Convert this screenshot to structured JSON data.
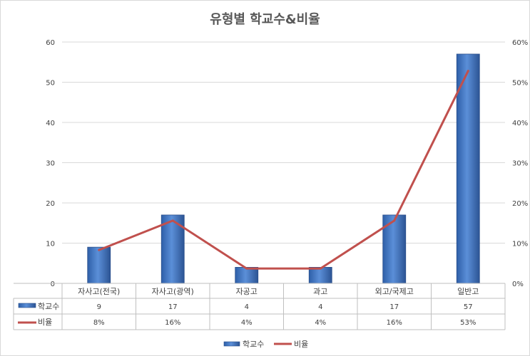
{
  "chart_data": {
    "type": "bar",
    "title": "유형별 학교수&비율",
    "categories": [
      "자사고(전국)",
      "자사고(광역)",
      "자공고",
      "과고",
      "외고/국제고",
      "일반고"
    ],
    "y_left": {
      "ticks": [
        "0",
        "10",
        "20",
        "30",
        "40",
        "50",
        "60"
      ],
      "range": [
        0,
        60
      ]
    },
    "y_right": {
      "ticks": [
        "0%",
        "10%",
        "20%",
        "30%",
        "40%",
        "50%",
        "60%"
      ],
      "range": [
        0,
        60
      ]
    },
    "series": [
      {
        "name": "학교수",
        "type": "bar",
        "axis": "left",
        "color": "#4472c4",
        "values": [
          9,
          17,
          4,
          4,
          17,
          57
        ],
        "labels": [
          "9",
          "17",
          "4",
          "4",
          "17",
          "57"
        ]
      },
      {
        "name": "비율",
        "type": "line",
        "axis": "right",
        "color": "#c0504d",
        "values": [
          8.3,
          15.6,
          3.7,
          3.7,
          15.6,
          52.8
        ],
        "labels": [
          "8%",
          "16%",
          "4%",
          "4%",
          "16%",
          "53%"
        ]
      }
    ],
    "grid": true,
    "legend": "bottom",
    "data_table": true
  }
}
